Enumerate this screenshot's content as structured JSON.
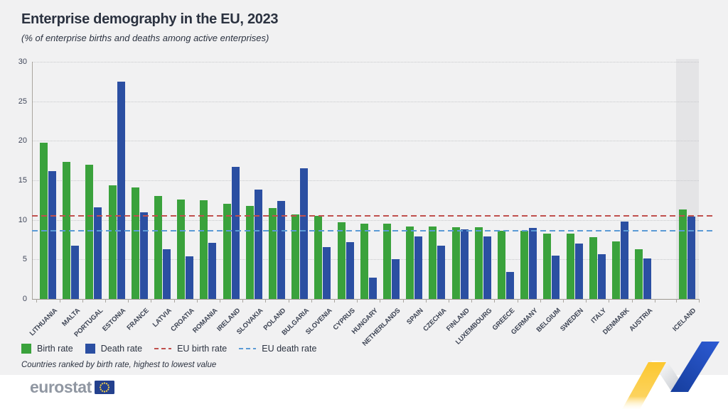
{
  "header": {
    "title": "Enterprise demography in the EU, 2023",
    "subtitle": "(% of enterprise births and deaths among active enterprises)"
  },
  "chart_data": {
    "type": "bar",
    "title": "Enterprise demography in the EU, 2023",
    "subtitle": "(% of enterprise births and deaths among active enterprises)",
    "categories": [
      "LITHUANIA",
      "MALTA",
      "PORTUGAL",
      "ESTONIA",
      "FRANCE",
      "LATVIA",
      "CROATIA",
      "ROMANIA",
      "IRELAND",
      "SLOVAKIA",
      "POLAND",
      "BULGARIA",
      "SLOVENIA",
      "CYPRUS",
      "HUNGARY",
      "NETHERLANDS",
      "SPAIN",
      "CZECHIA",
      "FINLAND",
      "LUXEMBOURG",
      "GREECE",
      "GERMANY",
      "BELGIUM",
      "SWEDEN",
      "ITALY",
      "DENMARK",
      "AUSTRIA",
      "ICELAND"
    ],
    "series": [
      {
        "name": "Birth rate",
        "values": [
          19.8,
          17.3,
          17.0,
          14.4,
          14.1,
          13.0,
          12.6,
          12.5,
          12.0,
          11.8,
          11.5,
          10.7,
          10.5,
          9.7,
          9.5,
          9.5,
          9.2,
          9.2,
          9.1,
          9.1,
          8.6,
          8.6,
          8.3,
          8.3,
          7.8,
          7.3,
          6.3,
          11.3
        ]
      },
      {
        "name": "Death rate",
        "values": [
          16.2,
          6.7,
          11.6,
          27.5,
          11.0,
          6.3,
          5.4,
          7.1,
          16.7,
          13.8,
          12.4,
          16.5,
          6.6,
          7.2,
          2.7,
          5.0,
          7.9,
          6.7,
          8.8,
          7.9,
          3.4,
          9.0,
          5.5,
          7.0,
          5.7,
          9.8,
          5.1,
          10.4
        ]
      }
    ],
    "reference_lines": [
      {
        "name": "EU birth rate",
        "value": 10.5,
        "color": "#c0504d"
      },
      {
        "name": "EU death rate",
        "value": 8.6,
        "color": "#5b9bd5"
      }
    ],
    "ylim": [
      0,
      30
    ],
    "yticks": [
      0,
      5,
      10,
      15,
      20,
      25,
      30
    ],
    "grid": true,
    "legend_position": "bottom",
    "highlight_category": "ICELAND",
    "xlabel": "",
    "ylabel": ""
  },
  "legend": {
    "items": [
      {
        "label": "Birth rate",
        "type": "square",
        "color": "#3aa23c"
      },
      {
        "label": "Death rate",
        "type": "square",
        "color": "#2b4fa2"
      },
      {
        "label": "EU birth rate",
        "type": "dash",
        "color": "#c0504d"
      },
      {
        "label": "EU death rate",
        "type": "dash",
        "color": "#5b9bd5"
      }
    ]
  },
  "note": "Countries ranked by birth rate, highest to lowest value",
  "footer": {
    "brand": "eurostat"
  },
  "colors": {
    "background": "#f1f1f2",
    "footer_background": "#ffffff",
    "birth_bar": "#3aa23c",
    "death_bar": "#2b4fa2",
    "eu_birth_line": "#c0504d",
    "eu_death_line": "#5b9bd5",
    "iceland_band": "#e4e4e6",
    "title_text": "#2b3240",
    "brand_gray": "#9097a2",
    "flag_blue": "#24418e",
    "star_yellow": "#f8d548",
    "ribbon_yellow": "#fcc832",
    "ribbon_blue": "#1d4fc0"
  }
}
